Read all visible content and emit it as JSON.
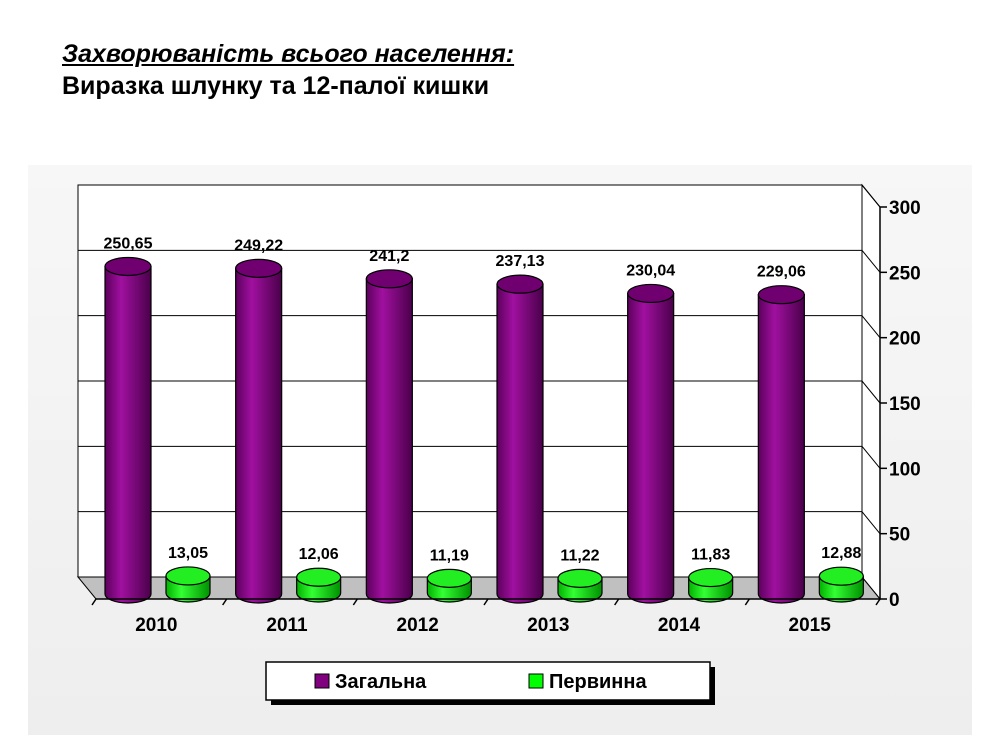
{
  "header": {
    "title_line1": "Захворюваність всього населення:",
    "title_line2": "Виразка шлунку та 12-палої кишки"
  },
  "chart_data": {
    "type": "bar",
    "categories": [
      "2010",
      "2011",
      "2012",
      "2013",
      "2014",
      "2015"
    ],
    "series": [
      {
        "name": "Загальна",
        "values": [
          250.65,
          249.22,
          241.2,
          237.13,
          230.04,
          229.06
        ],
        "labels": [
          "250,65",
          "249,22",
          "241,2",
          "237,13",
          "230,04",
          "229,06"
        ],
        "color": "#800080"
      },
      {
        "name": "Первинна",
        "values": [
          13.05,
          12.06,
          11.19,
          11.22,
          11.83,
          12.88
        ],
        "labels": [
          "13,05",
          "12,06",
          "11,19",
          "11,22",
          "11,83",
          "12,88"
        ],
        "color": "#00ff00"
      }
    ],
    "ylim": [
      0,
      300
    ],
    "yticks": [
      "0",
      "50",
      "100",
      "150",
      "200",
      "250",
      "300"
    ],
    "y_axis_side": "right",
    "grid": true,
    "legend_position": "bottom",
    "bar_shape": "cylinder"
  }
}
